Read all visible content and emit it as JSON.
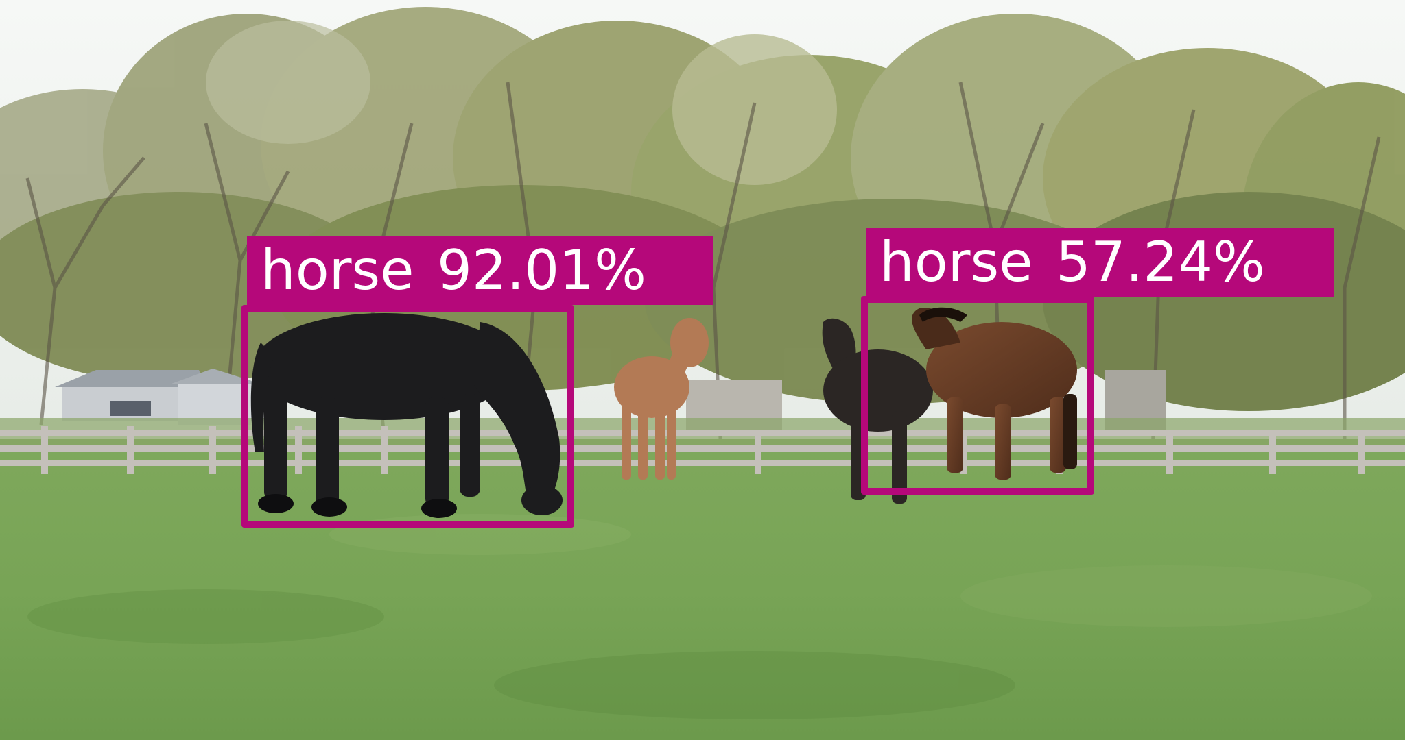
{
  "annotation_color": "#b5087a",
  "detections": [
    {
      "label": "horse",
      "score": "92.01%"
    },
    {
      "label": "horse",
      "score": "57.24%"
    }
  ]
}
